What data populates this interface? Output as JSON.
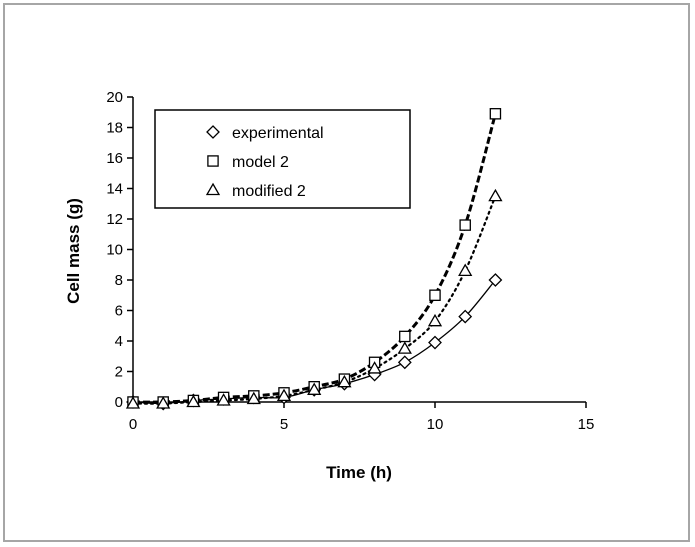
{
  "chart_data": {
    "type": "scatter",
    "xlabel": "Time (h)",
    "ylabel": "Cell mass (g)",
    "xlim": [
      0,
      15
    ],
    "ylim": [
      0,
      20
    ],
    "xticks": [
      0,
      5,
      10,
      15
    ],
    "yticks": [
      0,
      2,
      4,
      6,
      8,
      10,
      12,
      14,
      16,
      18,
      20
    ],
    "grid": false,
    "legend_position": "top-left",
    "series": [
      {
        "name": "experimental",
        "marker": "diamond",
        "line": "solid",
        "x": [
          0,
          1,
          2,
          3,
          4,
          5,
          6,
          7,
          8,
          9,
          10,
          11,
          12
        ],
        "y": [
          0.0,
          -0.1,
          0.1,
          0.2,
          0.3,
          0.3,
          0.8,
          1.2,
          1.8,
          2.6,
          3.9,
          5.6,
          8.0
        ]
      },
      {
        "name": "model 2",
        "marker": "square",
        "line": "dashed",
        "x": [
          0,
          1,
          2,
          3,
          4,
          5,
          6,
          7,
          8,
          9,
          10,
          11,
          12
        ],
        "y": [
          0.0,
          0.0,
          0.1,
          0.3,
          0.4,
          0.6,
          1.0,
          1.5,
          2.6,
          4.3,
          7.0,
          11.6,
          18.9
        ]
      },
      {
        "name": "modified 2",
        "marker": "triangle",
        "line": "dotted",
        "x": [
          0,
          1,
          2,
          3,
          4,
          5,
          6,
          7,
          8,
          9,
          10,
          11,
          12
        ],
        "y": [
          -0.1,
          -0.1,
          0.0,
          0.1,
          0.2,
          0.4,
          0.8,
          1.3,
          2.2,
          3.5,
          5.3,
          8.6,
          13.5
        ]
      }
    ]
  }
}
